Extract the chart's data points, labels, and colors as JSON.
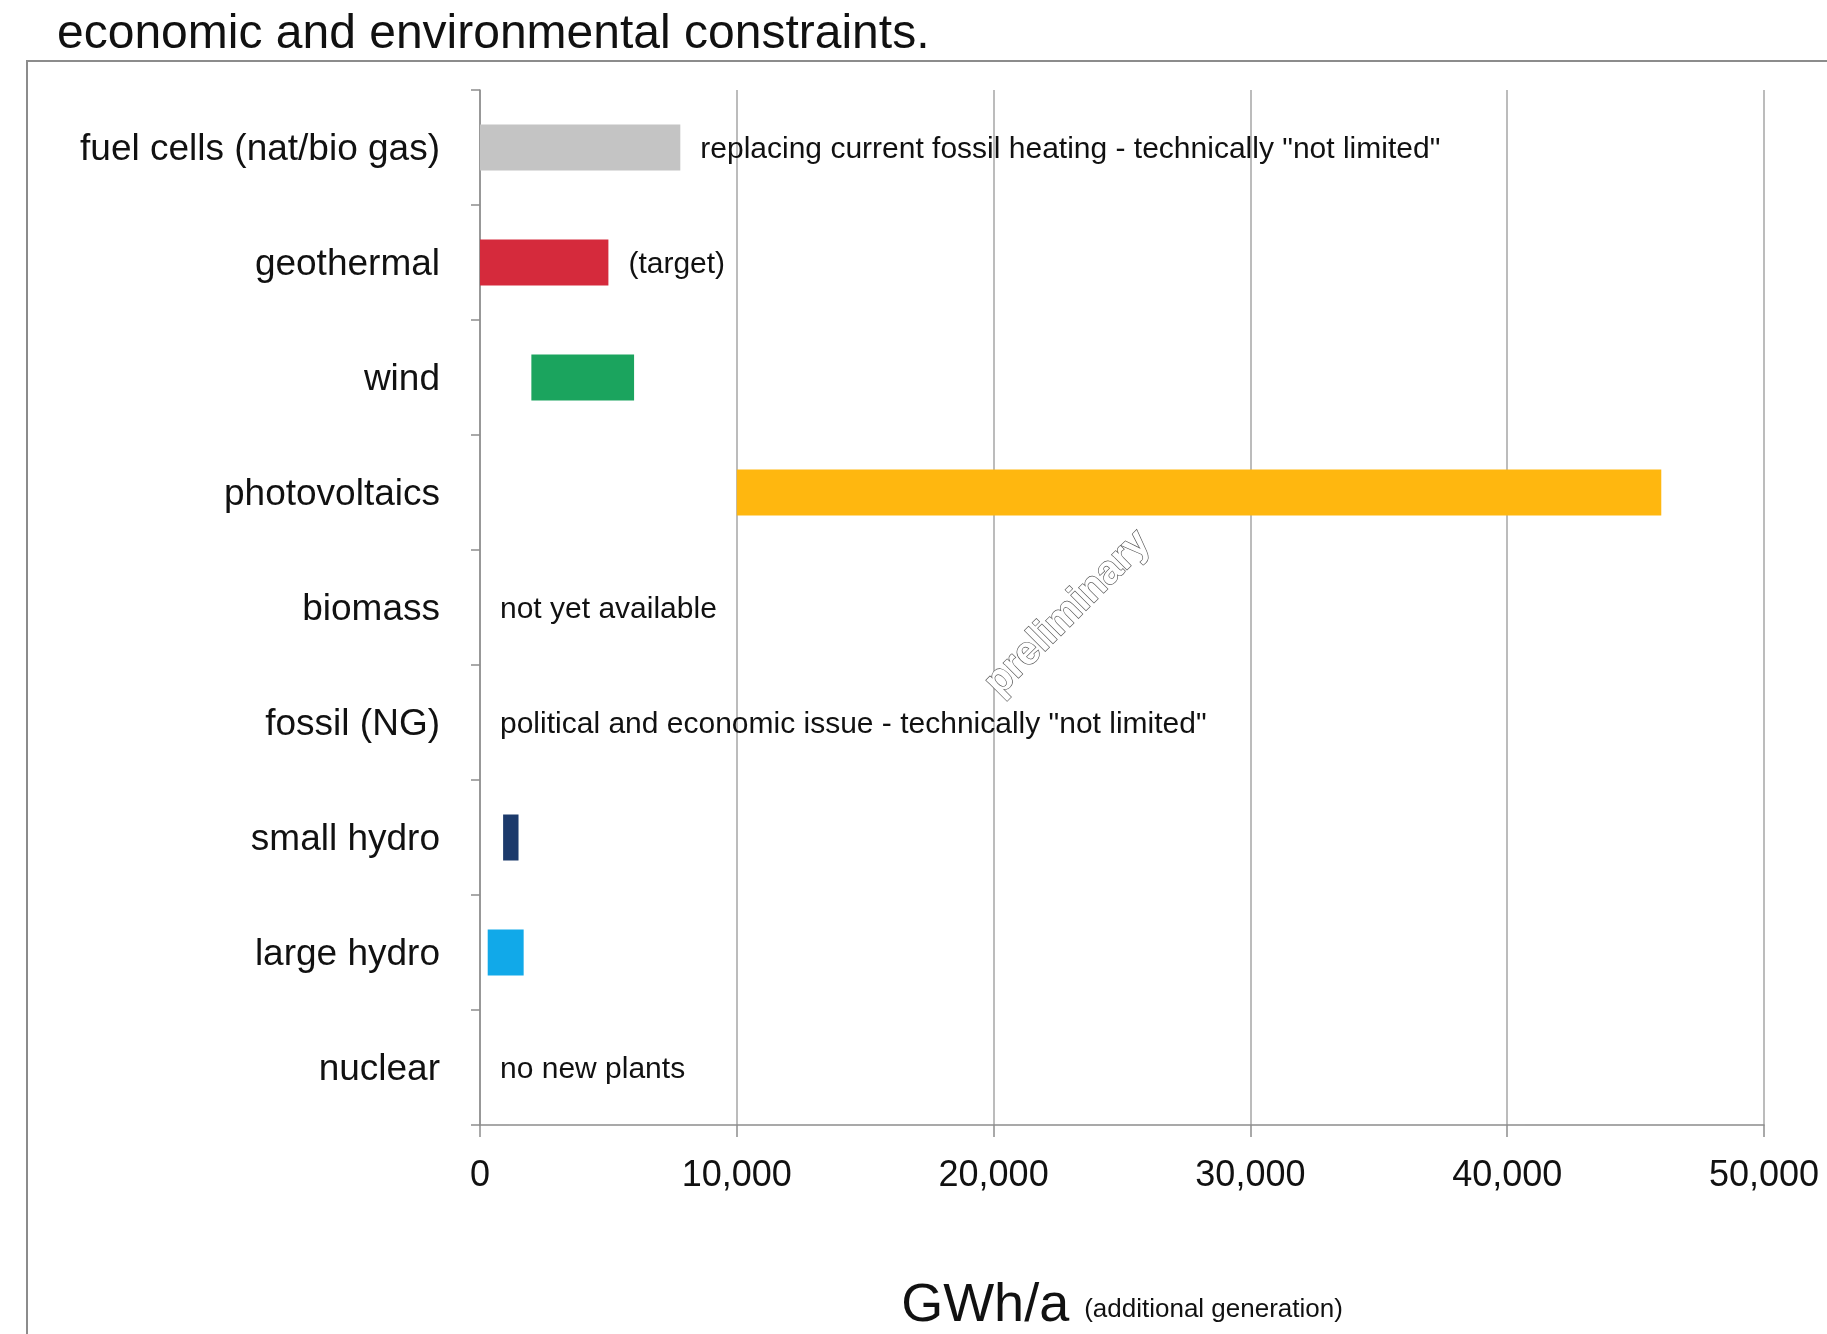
{
  "chart_data": {
    "type": "bar",
    "orientation": "horizontal",
    "title": "economic and environmental constraints.",
    "xlabel": "GWh/a (additional generation)",
    "categories": [
      "fuel cells (nat/bio gas)",
      "geothermal",
      "wind",
      "photovoltaics",
      "biomass",
      "fossil (NG)",
      "small hydro",
      "large hydro",
      "nuclear"
    ],
    "values": [
      7800,
      5000,
      4000,
      36000,
      null,
      null,
      600,
      1400,
      null
    ],
    "base": [
      0,
      0,
      2000,
      10000,
      null,
      null,
      900,
      300,
      null
    ],
    "colors": [
      "#c4c4c4",
      "#d52a3c",
      "#1ba45e",
      "#ffb70f",
      null,
      null,
      "#1c3a6b",
      "#11a9e9",
      null
    ],
    "xlim": [
      0,
      50000
    ],
    "xticks": [
      0,
      {
        "value": 10000,
        "label": "10,000"
      },
      {
        "value": 20000,
        "label": "20,000"
      },
      {
        "value": 30000,
        "label": "30,000"
      },
      {
        "value": 40000,
        "label": "40,000"
      },
      {
        "value": 50000,
        "label": "50,000"
      }
    ],
    "grid": "x",
    "annotations": [
      {
        "text": "replacing current fossil heating - technically \"not limited\"",
        "x": 7800,
        "y": "fuel cells (nat/bio gas)"
      },
      {
        "text": "(target)",
        "x": 5000,
        "y": "geothermal"
      },
      "not yet available",
      "political and economic issue - technically \"not limited\"",
      "no new plants",
      "preliminary"
    ]
  }
}
